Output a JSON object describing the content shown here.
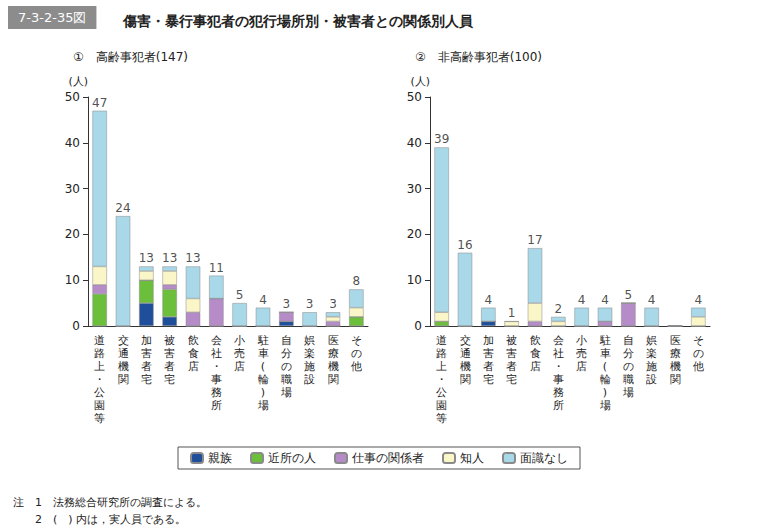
{
  "figure_label": "7-3-2-35図",
  "title": "傷害・暴行事犯者の犯行場所別・被害者との関係別人員",
  "notes": [
    "注　1　法務総合研究所の調査による。",
    "　　2　(　) 内は，実人員である。"
  ],
  "chart_data": [
    {
      "type": "bar",
      "title": "①　高齢事犯者(147)",
      "y_label": "(人)",
      "categories": [
        "道路上・公園等",
        "交通機関",
        "加害者宅",
        "被害者宅",
        "飲食店",
        "会社・事務所",
        "小売店",
        "駐車(輪)場",
        "自分の職場",
        "娯楽施設",
        "医療機関",
        "その他"
      ],
      "series": [
        {
          "name": "親族",
          "color": "#1f4e9a",
          "values": [
            0,
            0,
            5,
            2,
            0,
            0,
            0,
            0,
            1,
            0,
            0,
            0
          ]
        },
        {
          "name": "近所の人",
          "color": "#6cbf3a",
          "values": [
            7,
            0,
            5,
            6,
            0,
            0,
            0,
            0,
            0,
            0,
            0,
            2
          ]
        },
        {
          "name": "仕事の関係者",
          "color": "#b58cc8",
          "values": [
            2,
            0,
            0,
            1,
            3,
            6,
            0,
            0,
            2,
            0,
            1,
            0
          ]
        },
        {
          "name": "知人",
          "color": "#fbf6c8",
          "values": [
            4,
            0,
            2,
            3,
            3,
            0,
            0,
            0,
            0,
            0,
            1,
            2
          ]
        },
        {
          "name": "面識なし",
          "color": "#a9d8e8",
          "values": [
            34,
            24,
            1,
            1,
            7,
            5,
            5,
            4,
            0,
            3,
            1,
            4
          ]
        }
      ],
      "totals": [
        47,
        24,
        13,
        13,
        13,
        11,
        5,
        4,
        3,
        3,
        3,
        8
      ],
      "ylim": [
        0,
        50
      ],
      "yticks": [
        0,
        10,
        20,
        30,
        40,
        50
      ],
      "stacked": true,
      "grid": false,
      "legend": "bottom"
    },
    {
      "type": "bar",
      "title": "②　非高齢事犯者(100)",
      "y_label": "(人)",
      "categories": [
        "道路上・公園等",
        "交通機関",
        "加害者宅",
        "被害者宅",
        "飲食店",
        "会社・事務所",
        "小売店",
        "駐車(輪)場",
        "自分の職場",
        "娯楽施設",
        "医療機関",
        "その他"
      ],
      "series": [
        {
          "name": "親族",
          "color": "#1f4e9a",
          "values": [
            0,
            0,
            1,
            0,
            0,
            0,
            0,
            0,
            0,
            0,
            0,
            0
          ]
        },
        {
          "name": "近所の人",
          "color": "#6cbf3a",
          "values": [
            1,
            0,
            0,
            0,
            0,
            0,
            0,
            0,
            0,
            0,
            0,
            0
          ]
        },
        {
          "name": "仕事の関係者",
          "color": "#b58cc8",
          "values": [
            0,
            0,
            0,
            0,
            1,
            0,
            0,
            1,
            5,
            0,
            0,
            0
          ]
        },
        {
          "name": "知人",
          "color": "#fbf6c8",
          "values": [
            2,
            0,
            0,
            1,
            4,
            1,
            0,
            0,
            0,
            0,
            0,
            2
          ]
        },
        {
          "name": "面識なし",
          "color": "#a9d8e8",
          "values": [
            36,
            16,
            3,
            0,
            12,
            1,
            4,
            3,
            0,
            4,
            0,
            2
          ]
        }
      ],
      "totals": [
        39,
        16,
        4,
        1,
        17,
        2,
        4,
        4,
        5,
        4,
        null,
        4
      ],
      "ylim": [
        0,
        50
      ],
      "yticks": [
        0,
        10,
        20,
        30,
        40,
        50
      ],
      "stacked": true,
      "grid": false,
      "legend": "bottom"
    }
  ]
}
